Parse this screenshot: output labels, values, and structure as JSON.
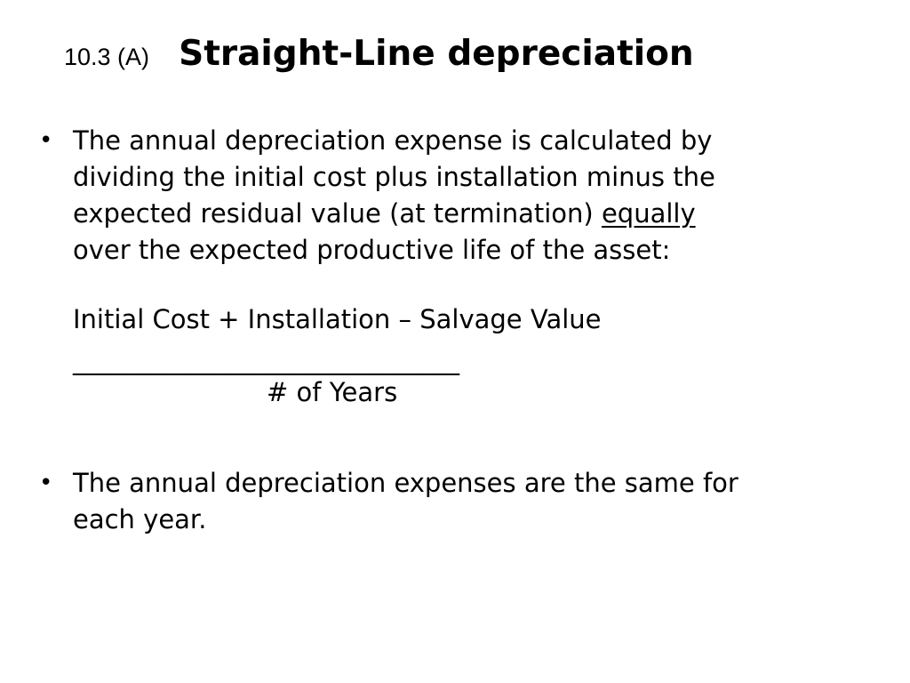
{
  "title": {
    "number": "10.3 (A)",
    "main": "Straight-Line depreciation"
  },
  "bullets": [
    {
      "marker": "•",
      "lines": [
        "The annual depreciation expense is calculated by",
        "dividing the initial cost plus installation minus the",
        "expected residual value (at termination) ",
        "over the expected productive life of the asset:"
      ],
      "emphasis": "equally"
    },
    {
      "marker": "•",
      "lines": [
        "The annual depreciation expenses are the same for",
        "each year."
      ]
    }
  ],
  "formula": {
    "numerator": "Initial Cost + Installation – Salvage Value",
    "bar": "______________________________",
    "denominator": "# of Years"
  }
}
